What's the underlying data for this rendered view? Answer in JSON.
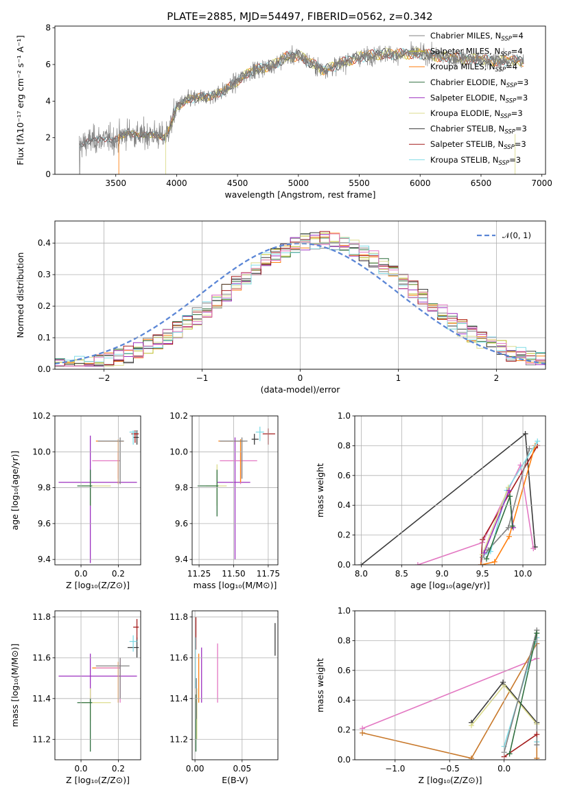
{
  "figure_title": "PLATE=2885, MJD=54497, FIBERID=0562, z=0.342",
  "colors": {
    "Chabrier MILES": "#808080",
    "Salpeter MILES": "#bcbd22",
    "Kroupa MILES": "#ff7f0e",
    "Chabrier ELODIE": "#2f6f3f",
    "Salpeter ELODIE": "#9b2fbf",
    "Kroupa ELODIE": "#dbdb8d",
    "Chabrier STELIB": "#3a3a3a",
    "Salpeter STELIB": "#a31a1a",
    "Kroupa STELIB": "#7fdbe6",
    "pink": "#e377c2",
    "normal": "#5b86d6",
    "bronze": "#c8782a"
  },
  "chart_data": [
    {
      "id": "spectrum",
      "type": "line",
      "title": "PLATE=2885, MJD=54497, FIBERID=0562, z=0.342",
      "xlabel": "wavelength [Angstrom, rest frame]",
      "ylabel": "Flux [fλ10⁻¹⁷ erg cm⁻² s⁻¹ A⁻¹]",
      "xlim": [
        3000,
        7030
      ],
      "ylim": [
        0,
        8.1
      ],
      "xticks": [
        3500,
        4000,
        4500,
        5000,
        5500,
        6000,
        6500,
        7000
      ],
      "yticks": [
        0,
        2,
        4,
        6,
        8
      ],
      "continuum": {
        "x": [
          3200,
          3300,
          3400,
          3500,
          3600,
          3700,
          3800,
          3900,
          3950,
          4000,
          4100,
          4200,
          4300,
          4400,
          4500,
          4600,
          4700,
          4800,
          4900,
          5000,
          5100,
          5200,
          5300,
          5400,
          5500,
          5600,
          5700,
          5800,
          5900,
          6000,
          6200,
          6400,
          6600,
          6850
        ],
        "y": [
          1.6,
          1.85,
          1.95,
          1.9,
          2.3,
          2.1,
          2.2,
          2.0,
          2.6,
          3.7,
          4.1,
          4.2,
          4.3,
          4.6,
          5.1,
          5.6,
          5.8,
          6.0,
          6.4,
          6.5,
          6.1,
          5.7,
          5.9,
          6.2,
          6.4,
          6.5,
          6.6,
          6.55,
          6.6,
          6.6,
          6.4,
          6.3,
          6.2,
          6.2
        ]
      },
      "legend": [
        {
          "name": "Chabrier MILES, N",
          "sub": "SSP",
          "suffix": "=4"
        },
        {
          "name": "Salpeter MILES, N",
          "sub": "SSP",
          "suffix": "=4"
        },
        {
          "name": "Kroupa MILES, N",
          "sub": "SSP",
          "suffix": "=4"
        },
        {
          "name": "Chabrier ELODIE, N",
          "sub": "SSP",
          "suffix": "=3"
        },
        {
          "name": "Salpeter ELODIE, N",
          "sub": "SSP",
          "suffix": "=3"
        },
        {
          "name": "Kroupa ELODIE, N",
          "sub": "SSP",
          "suffix": "=3"
        },
        {
          "name": "Chabrier STELIB, N",
          "sub": "SSP",
          "suffix": "=3"
        },
        {
          "name": "Salpeter STELIB, N",
          "sub": "SSP",
          "suffix": "=3"
        },
        {
          "name": "Kroupa STELIB, N",
          "sub": "SSP",
          "suffix": "=3"
        }
      ],
      "legend_placement": "upper-right"
    },
    {
      "id": "residuals",
      "type": "step",
      "xlabel": "(data-model)/error",
      "ylabel": "Normed distribution",
      "xlim": [
        -2.5,
        2.5
      ],
      "ylim": [
        0,
        0.47
      ],
      "xticks": [
        -2,
        -1,
        0,
        1,
        2
      ],
      "yticks": [
        0.0,
        0.1,
        0.2,
        0.3,
        0.4
      ],
      "grid": true,
      "legend": [
        "𝒩(0, 1)"
      ],
      "legend_placement": "upper-right"
    },
    {
      "id": "age-vs-Z",
      "type": "errorbar",
      "xlabel": "Z [log₁₀(Z/Z⊙)]",
      "ylabel": "age  [log₁₀(age/yr)]",
      "xlim": [
        -0.14,
        0.32
      ],
      "ylim": [
        9.37,
        10.2
      ],
      "xticks": [
        0.0,
        0.2
      ],
      "yticks": [
        9.4,
        9.6,
        9.8,
        10.0,
        10.2
      ],
      "points": [
        {
          "c": "Salpeter ELODIE",
          "x": 0.05,
          "y": 9.83,
          "xl": -0.12,
          "xh": 0.3,
          "yl": 9.38,
          "yh": 10.09
        },
        {
          "c": "Kroupa ELODIE",
          "x": 0.05,
          "y": 9.81,
          "xl": -0.0,
          "xh": 0.16,
          "yl": 9.7,
          "yh": 9.84
        },
        {
          "c": "Chabrier ELODIE",
          "x": 0.05,
          "y": 9.81,
          "xl": -0.02,
          "xh": 0.06,
          "yl": 9.7,
          "yh": 9.9
        },
        {
          "c": "pink",
          "x": 0.2,
          "y": 9.95,
          "xl": 0.06,
          "xh": 0.21,
          "yl": 9.85,
          "yh": 10.0
        },
        {
          "c": "Kroupa MILES",
          "x": 0.2,
          "y": 10.06,
          "xl": 0.08,
          "xh": 0.23,
          "yl": 9.82,
          "yh": 10.07
        },
        {
          "c": "Chabrier MILES",
          "x": 0.21,
          "y": 10.06,
          "xl": 0.09,
          "xh": 0.23,
          "yl": 9.82,
          "yh": 10.08
        },
        {
          "c": "Chabrier STELIB",
          "x": 0.3,
          "y": 10.08,
          "xl": 0.28,
          "xh": 0.31,
          "yl": 10.04,
          "yh": 10.12
        },
        {
          "c": "Salpeter STELIB",
          "x": 0.29,
          "y": 10.1,
          "xl": 0.27,
          "xh": 0.31,
          "yl": 10.05,
          "yh": 10.12
        },
        {
          "c": "Kroupa STELIB",
          "x": 0.28,
          "y": 10.11,
          "xl": 0.26,
          "xh": 0.3,
          "yl": 10.04,
          "yh": 10.12
        }
      ]
    },
    {
      "id": "age-vs-mass",
      "type": "errorbar",
      "xlabel": "mass [log₁₀(M/M⊙)]",
      "ylabel": "",
      "xlim": [
        11.2,
        11.82
      ],
      "ylim": [
        9.37,
        10.2
      ],
      "xticks": [
        11.25,
        11.5,
        11.75
      ],
      "yticks": [
        9.4,
        9.6,
        9.8,
        10.0,
        10.2
      ],
      "points": [
        {
          "c": "Salpeter ELODIE",
          "x": 11.51,
          "y": 9.83,
          "xl": 11.38,
          "xh": 11.62,
          "yl": 9.4,
          "yh": 10.08
        },
        {
          "c": "Kroupa ELODIE",
          "x": 11.38,
          "y": 9.81,
          "xl": 11.3,
          "xh": 11.45,
          "yl": 9.7,
          "yh": 9.93
        },
        {
          "c": "Chabrier ELODIE",
          "x": 11.38,
          "y": 9.81,
          "xl": 11.24,
          "xh": 11.39,
          "yl": 9.64,
          "yh": 9.9
        },
        {
          "c": "pink",
          "x": 11.55,
          "y": 9.95,
          "xl": 11.4,
          "xh": 11.67,
          "yl": 9.82,
          "yh": 10.0
        },
        {
          "c": "Kroupa MILES",
          "x": 11.55,
          "y": 10.06,
          "xl": 11.39,
          "xh": 11.58,
          "yl": 9.83,
          "yh": 10.07
        },
        {
          "c": "Chabrier MILES",
          "x": 11.56,
          "y": 10.06,
          "xl": 11.4,
          "xh": 11.6,
          "yl": 9.85,
          "yh": 10.08
        },
        {
          "c": "Chabrier STELIB",
          "x": 11.65,
          "y": 10.07,
          "xl": 11.63,
          "xh": 11.68,
          "yl": 10.04,
          "yh": 10.1
        },
        {
          "c": "Salpeter STELIB",
          "x": 11.75,
          "y": 10.1,
          "xl": 11.71,
          "xh": 11.8,
          "yl": 10.04,
          "yh": 10.13
        },
        {
          "c": "Kroupa STELIB",
          "x": 11.69,
          "y": 10.11,
          "xl": 11.66,
          "xh": 11.72,
          "yl": 10.06,
          "yh": 10.14
        }
      ]
    },
    {
      "id": "weight-vs-age",
      "type": "line",
      "xlabel": "age  [log₁₀(age/yr)]",
      "ylabel": "mass weight",
      "xlim": [
        7.92,
        10.28
      ],
      "ylim": [
        0,
        1.0
      ],
      "xticks": [
        8.0,
        8.5,
        9.0,
        9.5,
        10.0
      ],
      "yticks": [
        0.0,
        0.2,
        0.4,
        0.6,
        0.8,
        1.0
      ],
      "grid": true,
      "series": [
        {
          "c": "Chabrier STELIB",
          "x": [
            8.0,
            10.03,
            10.15
          ],
          "y": [
            0.0,
            0.88,
            0.12
          ]
        },
        {
          "c": "pink",
          "x": [
            8.7,
            9.5,
            9.97,
            10.13
          ],
          "y": [
            0.0,
            0.15,
            0.67,
            0.11
          ]
        },
        {
          "c": "Salpeter STELIB",
          "x": [
            9.48,
            9.5,
            10.18
          ],
          "y": [
            0.0,
            0.17,
            0.8
          ]
        },
        {
          "c": "Kroupa MILES",
          "x": [
            9.48,
            9.65,
            9.83,
            10.15
          ],
          "y": [
            0.0,
            0.02,
            0.19,
            0.8
          ]
        },
        {
          "c": "Chabrier MILES",
          "x": [
            9.5,
            9.57,
            9.82,
            10.08
          ],
          "y": [
            0.05,
            0.1,
            0.25,
            0.78
          ]
        },
        {
          "c": "Kroupa STELIB",
          "x": [
            9.52,
            9.6,
            9.8,
            10.18
          ],
          "y": [
            0.07,
            0.09,
            0.5,
            0.83
          ]
        },
        {
          "c": "Kroupa ELODIE",
          "x": [
            9.5,
            9.82,
            9.88
          ],
          "y": [
            0.07,
            0.52,
            0.25
          ]
        },
        {
          "c": "Salpeter ELODIE",
          "x": [
            9.52,
            9.83,
            9.88
          ],
          "y": [
            0.08,
            0.5,
            0.25
          ]
        },
        {
          "c": "Chabrier ELODIE",
          "x": [
            9.55,
            9.84,
            9.87
          ],
          "y": [
            0.04,
            0.46,
            0.26
          ]
        }
      ]
    },
    {
      "id": "mass-vs-Z",
      "type": "errorbar",
      "xlabel": "Z [log₁₀(Z/Z⊙)]",
      "ylabel": "mass [log₁₀(M/M⊙)]",
      "xlim": [
        -0.14,
        0.32
      ],
      "ylim": [
        11.1,
        11.83
      ],
      "xticks": [
        0.0,
        0.2
      ],
      "yticks": [
        11.2,
        11.4,
        11.6,
        11.8
      ],
      "points": [
        {
          "c": "Salpeter ELODIE",
          "x": 0.05,
          "y": 11.51,
          "xl": -0.12,
          "xh": 0.3,
          "yl": 11.38,
          "yh": 11.62
        },
        {
          "c": "Kroupa ELODIE",
          "x": 0.05,
          "y": 11.38,
          "xl": -0.0,
          "xh": 0.16,
          "yl": 11.29,
          "yh": 11.45
        },
        {
          "c": "Chabrier ELODIE",
          "x": 0.05,
          "y": 11.38,
          "xl": -0.02,
          "xh": 0.06,
          "yl": 11.14,
          "yh": 11.4
        },
        {
          "c": "Kroupa MILES",
          "x": 0.2,
          "y": 11.55,
          "xl": 0.06,
          "xh": 0.21,
          "yl": 11.38,
          "yh": 11.58
        },
        {
          "c": "pink",
          "x": 0.21,
          "y": 11.55,
          "xl": 0.08,
          "xh": 0.21,
          "yl": 11.38,
          "yh": 11.6
        },
        {
          "c": "Chabrier MILES",
          "x": 0.21,
          "y": 11.56,
          "xl": 0.08,
          "xh": 0.26,
          "yl": 11.4,
          "yh": 11.6
        },
        {
          "c": "Chabrier STELIB",
          "x": 0.3,
          "y": 11.65,
          "xl": 0.25,
          "xh": 0.31,
          "yl": 11.6,
          "yh": 11.7
        },
        {
          "c": "Salpeter STELIB",
          "x": 0.3,
          "y": 11.75,
          "xl": 0.28,
          "xh": 0.31,
          "yl": 11.69,
          "yh": 11.79
        },
        {
          "c": "Kroupa STELIB",
          "x": 0.28,
          "y": 11.68,
          "xl": 0.26,
          "xh": 0.3,
          "yl": 11.63,
          "yh": 11.71
        }
      ]
    },
    {
      "id": "mass-vs-EBV",
      "type": "errorbar",
      "xlabel": "E(B-V)",
      "ylabel": "",
      "xlim": [
        -0.003,
        0.088
      ],
      "ylim": [
        11.1,
        11.83
      ],
      "xticks": [
        0.0,
        0.05
      ],
      "yticks": [
        11.2,
        11.4,
        11.6,
        11.8
      ],
      "points": [
        {
          "c": "Chabrier STELIB",
          "x": 0.085,
          "y": 11.69,
          "yl": 11.61,
          "yh": 11.77
        },
        {
          "c": "pink",
          "x": 0.024,
          "y": 11.52,
          "yl": 11.38,
          "yh": 11.67
        },
        {
          "c": "Salpeter ELODIE",
          "x": 0.007,
          "y": 11.52,
          "yl": 11.38,
          "yh": 11.65
        },
        {
          "c": "Salpeter STELIB",
          "x": 0.001,
          "y": 11.72,
          "yl": 11.64,
          "yh": 11.8
        },
        {
          "c": "Kroupa STELIB",
          "x": 0.0005,
          "y": 11.6,
          "yl": 11.45,
          "yh": 11.7
        },
        {
          "c": "Kroupa MILES",
          "x": 0.004,
          "y": 11.5,
          "yl": 11.38,
          "yh": 11.62
        },
        {
          "c": "Kroupa ELODIE",
          "x": 0.002,
          "y": 11.36,
          "yl": 11.2,
          "yh": 11.45
        },
        {
          "c": "Chabrier ELODIE",
          "x": 0.001,
          "y": 11.3,
          "yl": 11.14,
          "yh": 11.42
        },
        {
          "c": "Chabrier MILES",
          "x": 0.0015,
          "y": 11.4,
          "yl": 11.3,
          "yh": 11.5
        }
      ]
    },
    {
      "id": "weight-vs-Z",
      "type": "line",
      "xlabel": "Z [log₁₀(Z/Z⊙)]",
      "ylabel": "mass weight",
      "xlim": [
        -1.37,
        0.38
      ],
      "ylim": [
        0,
        1.0
      ],
      "xticks": [
        -1.0,
        -0.5,
        0.0
      ],
      "yticks": [
        0.0,
        0.2,
        0.4,
        0.6,
        0.8,
        1.0
      ],
      "grid": true,
      "series": [
        {
          "c": "pink",
          "x": [
            -1.3,
            0.3
          ],
          "y": [
            0.21,
            0.68
          ]
        },
        {
          "c": "bronze",
          "x": [
            -1.3,
            -0.3,
            0.3,
            0.3
          ],
          "y": [
            0.18,
            0.01,
            0.78,
            0.01
          ]
        },
        {
          "c": "Chabrier STELIB",
          "x": [
            -0.3,
            -0.01,
            0.3
          ],
          "y": [
            0.25,
            0.52,
            0.25
          ]
        },
        {
          "c": "Kroupa ELODIE",
          "x": [
            -0.3,
            0.0,
            0.3
          ],
          "y": [
            0.23,
            0.5,
            0.24
          ]
        },
        {
          "c": "Kroupa STELIB",
          "x": [
            0.0,
            0.3,
            0.3
          ],
          "y": [
            0.09,
            0.82,
            0.12
          ]
        },
        {
          "c": "Chabrier MILES",
          "x": [
            0.0,
            0.3,
            0.3
          ],
          "y": [
            0.05,
            0.87,
            0.1
          ]
        },
        {
          "c": "Salpeter STELIB",
          "x": [
            0.0,
            0.3
          ],
          "y": [
            0.02,
            0.17
          ]
        },
        {
          "c": "Chabrier ELODIE",
          "x": [
            0.05,
            0.3
          ],
          "y": [
            0.04,
            0.85
          ]
        }
      ]
    }
  ]
}
